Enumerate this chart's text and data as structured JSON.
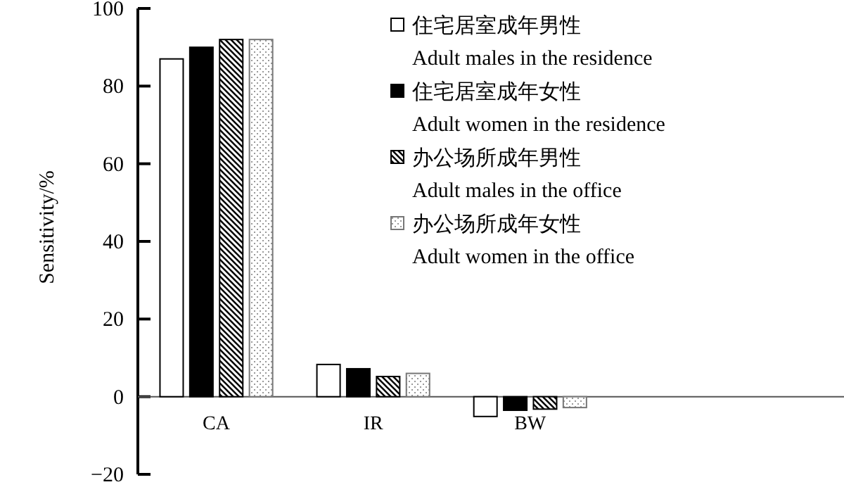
{
  "chart_data": {
    "type": "bar",
    "categories": [
      "CA",
      "IR",
      "BW"
    ],
    "series": [
      {
        "name": "住宅居室成年男性\nAdult males in the residence",
        "color": "#ffffff",
        "values": [
          87,
          8.3,
          -5.1
        ]
      },
      {
        "name": "住宅居室成年女性\nAdult women in the residence",
        "color": "#000000",
        "values": [
          90,
          7.2,
          -3.5
        ]
      },
      {
        "name": "办公场所成年男性\nAdult males in the office",
        "color": "#000000",
        "values": [
          92,
          5.2,
          -3.2
        ]
      },
      {
        "name": "办公场所成年女性\nAdult women in the office",
        "color": "#777777",
        "values": [
          92,
          6.0,
          -2.8
        ]
      }
    ],
    "ylabel": "Sensitivity/%",
    "ylim": [
      -20,
      100
    ],
    "yticks": [
      {
        "value": -20,
        "label": "−20"
      },
      0,
      20,
      40,
      60,
      80,
      100
    ],
    "legend": "top right",
    "grid": false
  }
}
